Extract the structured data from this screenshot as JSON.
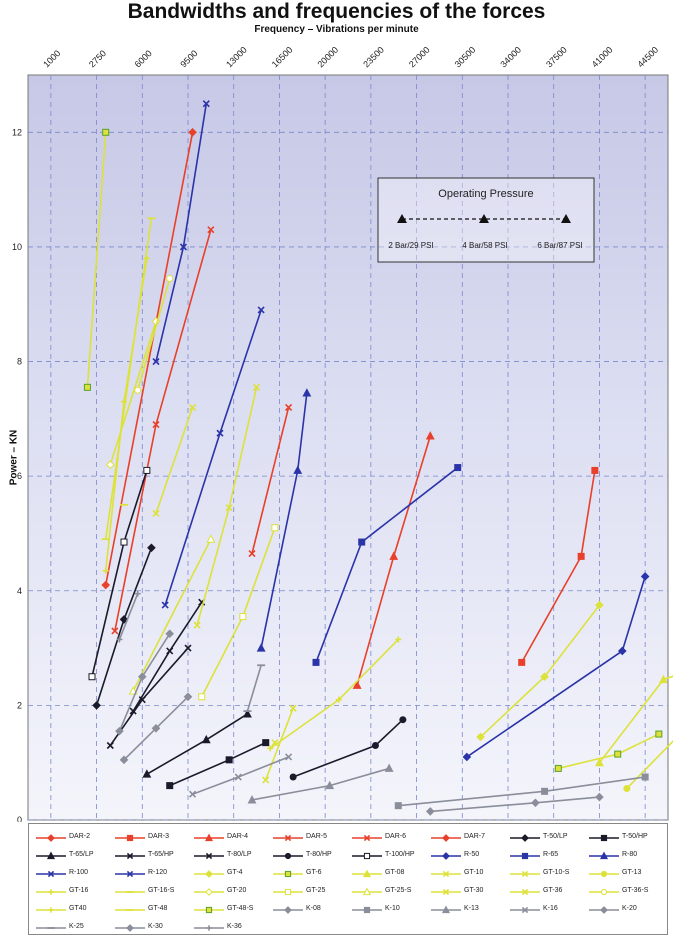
{
  "chart_data": {
    "type": "line",
    "title": "Bandwidths and frequencies of the forces",
    "xlabel": "Frequency – Vibrations per minute",
    "ylabel": "Power – KN",
    "x_ticks": [
      "1000",
      "2750",
      "6000",
      "9500",
      "13000",
      "16500",
      "20000",
      "23500",
      "27000",
      "30500",
      "34000",
      "37500",
      "41000",
      "44500"
    ],
    "y_ticks": [
      0,
      2,
      4,
      6,
      8,
      10,
      12
    ],
    "ylim": [
      0,
      13
    ],
    "grid": true,
    "legend_position": "bottom",
    "annotation": {
      "title": "Operating Pressure",
      "labels": [
        "2 Bar/29 PSI",
        "4 Bar/58 PSI",
        "6 Bar/87 PSI"
      ]
    },
    "series": [
      {
        "name": "DAR-2",
        "color": "#e8402a",
        "marker": "diamond",
        "points": [
          [
            1.2,
            4.1
          ],
          [
            3.1,
            12.0
          ]
        ]
      },
      {
        "name": "DAR-3",
        "color": "#e8402a",
        "marker": "square",
        "points": [
          [
            10.3,
            2.75
          ],
          [
            11.6,
            4.6
          ],
          [
            11.9,
            6.1
          ]
        ]
      },
      {
        "name": "DAR-4",
        "color": "#e8402a",
        "marker": "triangle",
        "points": [
          [
            6.7,
            2.35
          ],
          [
            7.5,
            4.6
          ],
          [
            8.3,
            6.7
          ]
        ]
      },
      {
        "name": "DAR-5",
        "color": "#e8402a",
        "marker": "x",
        "points": [
          [
            1.4,
            3.3
          ],
          [
            2.3,
            6.9
          ],
          [
            3.5,
            10.3
          ]
        ]
      },
      {
        "name": "DAR-6",
        "color": "#e8402a",
        "marker": "x",
        "points": [
          [
            4.4,
            4.65
          ],
          [
            5.2,
            7.2
          ]
        ]
      },
      {
        "name": "DAR-7",
        "color": "#e8402a",
        "marker": "diamond",
        "points": [
          [
            14.5,
            2.25
          ],
          [
            15.3,
            3.4
          ],
          [
            15.6,
            4.1
          ]
        ]
      },
      {
        "name": "T-50/LP",
        "color": "#1a1a2a",
        "marker": "diamond",
        "points": [
          [
            1.0,
            2.0
          ],
          [
            1.6,
            3.5
          ],
          [
            2.2,
            4.75
          ]
        ]
      },
      {
        "name": "T-50/HP",
        "color": "#1a1a2a",
        "marker": "square",
        "points": [
          [
            2.6,
            0.6
          ],
          [
            3.9,
            1.05
          ],
          [
            4.7,
            1.35
          ]
        ]
      },
      {
        "name": "T-65/LP",
        "color": "#1a1a2a",
        "marker": "triangle",
        "points": [
          [
            2.1,
            0.8
          ],
          [
            3.4,
            1.4
          ],
          [
            4.3,
            1.85
          ]
        ]
      },
      {
        "name": "T-65/HP",
        "color": "#1a1a2a",
        "marker": "x",
        "points": [
          [
            1.3,
            1.3
          ],
          [
            2.0,
            2.1
          ],
          [
            3.0,
            3.0
          ]
        ]
      },
      {
        "name": "T-80/LP",
        "color": "#1a1a2a",
        "marker": "x",
        "points": [
          [
            1.8,
            1.9
          ],
          [
            2.6,
            2.95
          ],
          [
            3.3,
            3.8
          ]
        ]
      },
      {
        "name": "T-80/HP",
        "color": "#1a1a2a",
        "marker": "circle",
        "points": [
          [
            5.3,
            0.75
          ],
          [
            7.1,
            1.3
          ],
          [
            7.7,
            1.75
          ]
        ]
      },
      {
        "name": "T-100/HP",
        "color": "#1a1a2a",
        "marker": "square-open",
        "points": [
          [
            0.9,
            2.5
          ],
          [
            1.6,
            4.85
          ],
          [
            2.1,
            6.1
          ]
        ]
      },
      {
        "name": "R-50",
        "color": "#2a34a8",
        "marker": "diamond",
        "points": [
          [
            9.1,
            1.1
          ],
          [
            12.5,
            2.95
          ],
          [
            13.0,
            4.25
          ]
        ]
      },
      {
        "name": "R-65",
        "color": "#2a34a8",
        "marker": "square",
        "points": [
          [
            5.8,
            2.75
          ],
          [
            6.8,
            4.85
          ],
          [
            8.9,
            6.15
          ]
        ]
      },
      {
        "name": "R-80",
        "color": "#2a34a8",
        "marker": "triangle",
        "points": [
          [
            4.6,
            3.0
          ],
          [
            5.4,
            6.1
          ],
          [
            5.6,
            7.45
          ]
        ]
      },
      {
        "name": "R-100",
        "color": "#2a34a8",
        "marker": "x",
        "points": [
          [
            2.5,
            3.75
          ],
          [
            3.7,
            6.75
          ],
          [
            4.6,
            8.9
          ]
        ]
      },
      {
        "name": "R-120",
        "color": "#2a34a8",
        "marker": "x",
        "points": [
          [
            2.3,
            8.0
          ],
          [
            2.9,
            10.0
          ],
          [
            3.4,
            12.5
          ]
        ]
      },
      {
        "name": "GT-4",
        "color": "#dde23a",
        "marker": "diamond",
        "points": [
          [
            9.4,
            1.45
          ],
          [
            10.8,
            2.5
          ],
          [
            12.0,
            3.75
          ]
        ]
      },
      {
        "name": "GT-6",
        "color": "#dde23a",
        "marker": "square",
        "points": [
          [
            11.1,
            0.9
          ],
          [
            12.4,
            1.15
          ],
          [
            13.3,
            1.5
          ]
        ]
      },
      {
        "name": "GT-08",
        "color": "#dde23a",
        "marker": "triangle",
        "points": [
          [
            12.0,
            1.0
          ],
          [
            13.4,
            2.45
          ],
          [
            15.2,
            2.95
          ]
        ]
      },
      {
        "name": "GT-10",
        "color": "#dde23a",
        "marker": "x",
        "points": [
          [
            4.7,
            0.7
          ],
          [
            5.3,
            1.95
          ]
        ]
      },
      {
        "name": "GT-10-S",
        "color": "#dde23a",
        "marker": "x",
        "points": [
          [
            4.9,
            1.35
          ]
        ]
      },
      {
        "name": "GT-13",
        "color": "#dde23a",
        "marker": "circle",
        "points": [
          [
            12.6,
            0.55
          ],
          [
            14.5,
            2.1
          ],
          [
            16.1,
            1.15
          ]
        ]
      },
      {
        "name": "GT-16",
        "color": "#dde23a",
        "marker": "plus",
        "points": [
          [
            4.8,
            1.25
          ],
          [
            6.3,
            2.1
          ],
          [
            7.6,
            3.15
          ]
        ]
      },
      {
        "name": "GT-16-S",
        "color": "#dde23a",
        "marker": "line",
        "points": [
          [
            1.6,
            5.5
          ]
        ]
      },
      {
        "name": "GT-20",
        "color": "#dde23a",
        "marker": "diamond-open",
        "points": [
          [
            1.3,
            6.2
          ],
          [
            2.3,
            8.7
          ]
        ]
      },
      {
        "name": "GT-25",
        "color": "#dde23a",
        "marker": "square-open",
        "points": [
          [
            3.3,
            2.15
          ],
          [
            4.2,
            3.55
          ],
          [
            4.9,
            5.1
          ]
        ]
      },
      {
        "name": "GT-25-S",
        "color": "#dde23a",
        "marker": "triangle-open",
        "points": [
          [
            1.8,
            2.25
          ],
          [
            3.5,
            4.9
          ]
        ]
      },
      {
        "name": "GT-30",
        "color": "#dde23a",
        "marker": "x",
        "points": [
          [
            3.2,
            3.4
          ],
          [
            3.9,
            5.45
          ],
          [
            4.5,
            7.55
          ]
        ]
      },
      {
        "name": "GT-36",
        "color": "#dde23a",
        "marker": "x",
        "points": [
          [
            2.3,
            5.35
          ],
          [
            3.1,
            7.2
          ]
        ]
      },
      {
        "name": "GT-36-S",
        "color": "#dde23a",
        "marker": "circle-open",
        "points": [
          [
            1.9,
            7.5
          ],
          [
            2.6,
            9.45
          ]
        ]
      },
      {
        "name": "GT40",
        "color": "#dde23a",
        "marker": "plus",
        "points": [
          [
            1.2,
            4.35
          ],
          [
            1.6,
            7.3
          ],
          [
            2.1,
            9.8
          ]
        ]
      },
      {
        "name": "GT-48",
        "color": "#dde23a",
        "marker": "line",
        "points": [
          [
            1.2,
            4.9
          ],
          [
            2.2,
            10.5
          ]
        ]
      },
      {
        "name": "GT-48-S",
        "color": "#dde23a",
        "marker": "square",
        "points": [
          [
            0.8,
            7.55
          ],
          [
            1.2,
            12.0
          ]
        ]
      },
      {
        "name": "K-08",
        "color": "#8a8e9a",
        "marker": "diamond",
        "points": [
          [
            1.5,
            1.55
          ],
          [
            2.0,
            2.5
          ],
          [
            2.6,
            3.25
          ]
        ]
      },
      {
        "name": "K-10",
        "color": "#8a8e9a",
        "marker": "square",
        "points": [
          [
            7.6,
            0.25
          ],
          [
            10.8,
            0.5
          ],
          [
            13.0,
            0.75
          ]
        ]
      },
      {
        "name": "K-13",
        "color": "#8a8e9a",
        "marker": "triangle",
        "points": [
          [
            4.4,
            0.35
          ],
          [
            6.1,
            0.6
          ],
          [
            7.4,
            0.9
          ]
        ]
      },
      {
        "name": "K-16",
        "color": "#8a8e9a",
        "marker": "x",
        "points": [
          [
            3.1,
            0.45
          ],
          [
            4.1,
            0.75
          ],
          [
            5.2,
            1.1
          ]
        ]
      },
      {
        "name": "K-20",
        "color": "#8a8e9a",
        "marker": "diamond",
        "points": [
          [
            1.6,
            1.05
          ],
          [
            2.3,
            1.6
          ],
          [
            3.0,
            2.15
          ]
        ]
      },
      {
        "name": "K-25",
        "color": "#8a8e9a",
        "marker": "line",
        "points": [
          [
            4.3,
            1.9
          ],
          [
            4.6,
            2.7
          ]
        ]
      },
      {
        "name": "K-30",
        "color": "#8a8e9a",
        "marker": "diamond",
        "points": [
          [
            8.3,
            0.15
          ],
          [
            10.6,
            0.3
          ],
          [
            12.0,
            0.4
          ]
        ]
      },
      {
        "name": "K-36",
        "color": "#8a8e9a",
        "marker": "plus",
        "points": [
          [
            1.5,
            3.15
          ],
          [
            1.9,
            3.95
          ]
        ]
      }
    ]
  }
}
